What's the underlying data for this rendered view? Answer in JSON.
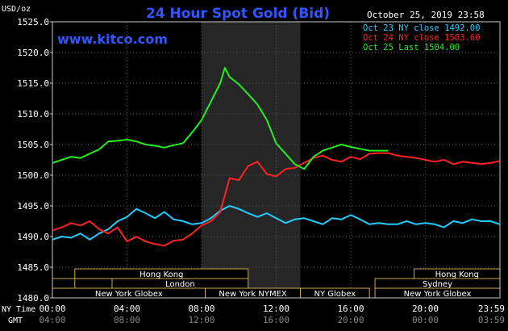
{
  "header": {
    "title": "24 Hour Spot Gold (Bid)",
    "timestamp": "October 25, 2019 23:58",
    "website": "www.kitco.com",
    "unit": "USD/oz"
  },
  "legend": [
    {
      "label": "Oct 23 NY close 1492.00",
      "color": "#22ccff"
    },
    {
      "label": "Oct 24 NY close 1503.60",
      "color": "#ff2222"
    },
    {
      "label": "Oct 25 Last 1504.00",
      "color": "#22ee22"
    }
  ],
  "axis": {
    "row1_label": "NY Time",
    "row2_label": "GMT",
    "ny_ticks": [
      "00:00",
      "04:00",
      "08:00",
      "12:00",
      "16:00",
      "20:00",
      "23:59"
    ],
    "gmt_ticks": [
      "04:00",
      "08:00",
      "12:00",
      "16:00",
      "20:00",
      "00:00",
      "03:59"
    ]
  },
  "sessions": {
    "row1": [
      "Hong Kong",
      "Hong Kong"
    ],
    "row2": [
      "London",
      "Sydney"
    ],
    "row3": [
      "New York Globex",
      "New York NYMEX",
      "NY Globex",
      "New York Globex"
    ]
  },
  "chart_data": {
    "type": "line",
    "title": "24 Hour Spot Gold (Bid)",
    "ylabel": "USD/oz",
    "ylim": [
      1480,
      1525
    ],
    "xlim": [
      0,
      24
    ],
    "y_ticks": [
      "1525.0",
      "1520.0",
      "1515.0",
      "1510.0",
      "1505.0",
      "1500.0",
      "1495.0",
      "1490.0",
      "1485.0",
      "1480.0"
    ],
    "shaded_region": [
      8,
      13.3
    ],
    "grid": true,
    "series": [
      {
        "name": "Oct 23 NY close 1492.00",
        "color": "#22ccff",
        "x": [
          0,
          0.5,
          1,
          1.5,
          2,
          2.5,
          3,
          3.5,
          4,
          4.5,
          5,
          5.5,
          6,
          6.5,
          7,
          7.5,
          8,
          8.5,
          9,
          9.5,
          10,
          10.5,
          11,
          11.5,
          12,
          12.5,
          13,
          13.5,
          14,
          14.5,
          15,
          15.5,
          16,
          16.5,
          17,
          17.5,
          18,
          18.5,
          19,
          19.5,
          20,
          20.5,
          21,
          21.5,
          22,
          22.5,
          23,
          23.5,
          24
        ],
        "y": [
          1489.5,
          1490,
          1489.8,
          1490.5,
          1489.5,
          1490.5,
          1491.2,
          1492.5,
          1493.2,
          1494.5,
          1493.8,
          1493,
          1494,
          1492.8,
          1492.5,
          1492,
          1492.2,
          1493,
          1494.2,
          1495,
          1494.5,
          1493.8,
          1493.2,
          1493.8,
          1493,
          1492.2,
          1492.8,
          1493,
          1492.5,
          1492,
          1493,
          1492.8,
          1493.5,
          1492.8,
          1492,
          1492.2,
          1492,
          1492,
          1492.5,
          1492,
          1492.2,
          1492,
          1491.5,
          1492.5,
          1492.2,
          1492.8,
          1492.5,
          1492.5,
          1492
        ]
      },
      {
        "name": "Oct 24 NY close 1503.60",
        "color": "#ff2222",
        "x": [
          0,
          0.5,
          1,
          1.5,
          2,
          2.5,
          3,
          3.5,
          4,
          4.5,
          5,
          5.5,
          6,
          6.5,
          7,
          7.5,
          8,
          8.5,
          9,
          9.5,
          10,
          10.5,
          11,
          11.5,
          12,
          12.5,
          13,
          13.5,
          14,
          14.5,
          15,
          15.5,
          16,
          16.5,
          17,
          17.5,
          18,
          18.5,
          19,
          19.5,
          20,
          20.5,
          21,
          21.5,
          22,
          22.5,
          23,
          23.5,
          24
        ],
        "y": [
          1491,
          1491.5,
          1492.2,
          1491.8,
          1492.5,
          1491.2,
          1490.5,
          1491.5,
          1489.2,
          1490,
          1489.2,
          1488.8,
          1488.5,
          1489.3,
          1489.5,
          1490.5,
          1491.8,
          1492.5,
          1494,
          1499.5,
          1499.2,
          1501.5,
          1502.2,
          1500.2,
          1499.8,
          1501,
          1501.2,
          1502,
          1502.8,
          1503.2,
          1502.5,
          1502.2,
          1503,
          1502.6,
          1503.5,
          1503.6,
          1503.6,
          1503.2,
          1503,
          1502.8,
          1502.5,
          1502.2,
          1502.5,
          1501.8,
          1502.2,
          1502,
          1501.8,
          1502,
          1502.3
        ]
      },
      {
        "name": "Oct 25 Last 1504.00",
        "color": "#22ee22",
        "x": [
          0,
          0.5,
          1,
          1.5,
          2,
          2.5,
          3,
          3.5,
          4,
          4.5,
          5,
          5.5,
          6,
          6.5,
          7,
          7.5,
          8,
          8.5,
          9,
          9.25,
          9.5,
          10,
          10.5,
          11,
          11.5,
          12,
          12.5,
          13,
          13.5,
          14,
          14.5,
          15,
          15.5,
          16,
          16.5,
          17,
          17.5,
          18
        ],
        "y": [
          1502,
          1502.5,
          1503,
          1502.8,
          1503.5,
          1504.2,
          1505.5,
          1505.6,
          1505.8,
          1505.5,
          1505,
          1504.8,
          1504.5,
          1504.9,
          1505.2,
          1507,
          1509,
          1512,
          1515,
          1517.5,
          1516,
          1514.8,
          1513.2,
          1511.5,
          1509,
          1505.2,
          1503.5,
          1501.8,
          1501,
          1503,
          1504,
          1504.5,
          1505,
          1504.6,
          1504.3,
          1504,
          1504,
          1504
        ]
      }
    ]
  }
}
